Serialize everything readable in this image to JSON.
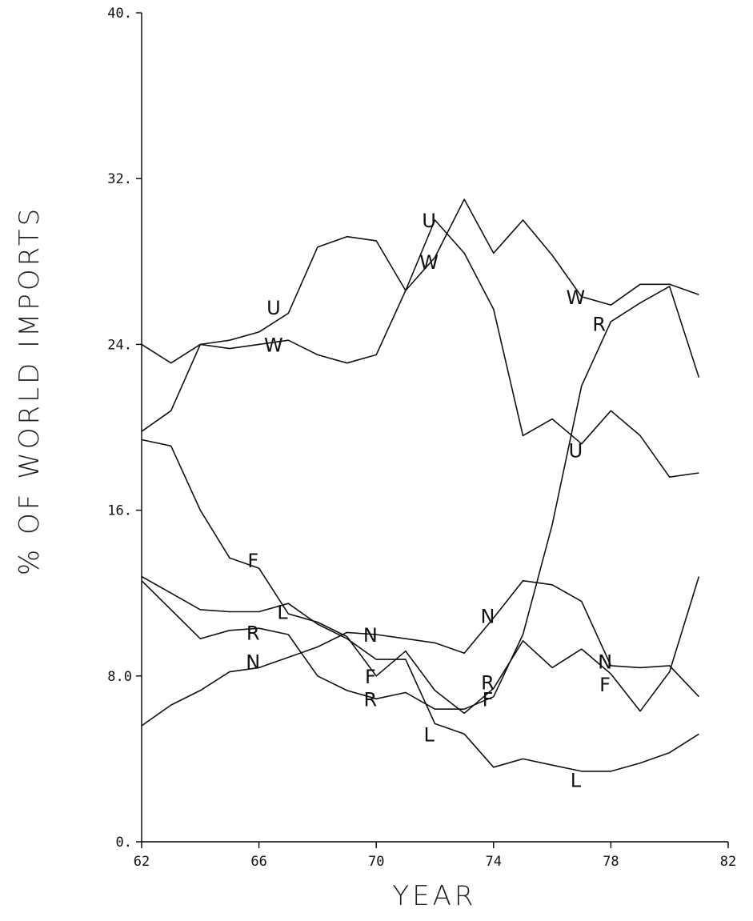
{
  "chart_data": {
    "type": "line",
    "xlabel": "YEAR",
    "ylabel": "% OF WORLD IMPORTS",
    "xlim": [
      62,
      82
    ],
    "ylim": [
      0,
      40
    ],
    "x_ticks": [
      62,
      66,
      70,
      74,
      78,
      82
    ],
    "x_tick_labels": [
      "62",
      "66",
      "70",
      "74",
      "78",
      "82"
    ],
    "y_ticks": [
      0,
      8,
      16,
      24,
      32,
      40
    ],
    "y_tick_labels": [
      "0.",
      "8.0",
      "16.",
      "24.",
      "32.",
      "40."
    ],
    "x": [
      62,
      63,
      64,
      65,
      66,
      67,
      68,
      69,
      70,
      71,
      72,
      73,
      74,
      75,
      76,
      77,
      78,
      79,
      80,
      81
    ],
    "series": [
      {
        "name": "U",
        "values": [
          19.8,
          20.8,
          24.0,
          24.2,
          24.6,
          25.5,
          28.7,
          29.2,
          29.0,
          26.6,
          30.0,
          28.4,
          25.7,
          19.6,
          20.4,
          19.2,
          20.8,
          19.6,
          17.6,
          17.8
        ],
        "markers": [
          {
            "x": 66.5,
            "y": 25.8
          },
          {
            "x": 71.8,
            "y": 30.0
          },
          {
            "x": 76.8,
            "y": 18.9
          }
        ]
      },
      {
        "name": "W",
        "values": [
          24.0,
          23.1,
          24.0,
          23.8,
          24.0,
          24.2,
          23.5,
          23.1,
          23.5,
          26.6,
          28.2,
          31.0,
          28.4,
          30.0,
          28.3,
          26.3,
          25.9,
          26.9,
          26.9,
          26.4
        ],
        "markers": [
          {
            "x": 66.5,
            "y": 24.0
          },
          {
            "x": 71.8,
            "y": 28.0
          },
          {
            "x": 76.8,
            "y": 26.3
          }
        ]
      },
      {
        "name": "R",
        "values": [
          12.6,
          11.2,
          9.8,
          10.2,
          10.3,
          10.0,
          8.0,
          7.3,
          6.9,
          7.2,
          6.4,
          6.4,
          7.0,
          10.0,
          15.3,
          22.0,
          25.1,
          26.0,
          26.8,
          22.4
        ],
        "markers": [
          {
            "x": 65.8,
            "y": 10.1
          },
          {
            "x": 69.8,
            "y": 6.9
          },
          {
            "x": 73.8,
            "y": 7.7
          },
          {
            "x": 77.6,
            "y": 25.0
          }
        ]
      },
      {
        "name": "F",
        "values": [
          19.4,
          19.1,
          16.0,
          13.7,
          13.2,
          11.0,
          10.6,
          9.9,
          8.0,
          9.2,
          7.3,
          6.2,
          7.4,
          9.7,
          8.4,
          9.3,
          8.1,
          6.3,
          8.2,
          12.8
        ],
        "markers": [
          {
            "x": 65.8,
            "y": 13.6
          },
          {
            "x": 69.8,
            "y": 8.0
          },
          {
            "x": 73.8,
            "y": 6.9
          },
          {
            "x": 77.8,
            "y": 7.6
          }
        ]
      },
      {
        "name": "L",
        "values": [
          12.8,
          12.0,
          11.2,
          11.1,
          11.1,
          11.5,
          10.5,
          9.8,
          8.8,
          8.8,
          5.7,
          5.2,
          3.6,
          4.0,
          3.7,
          3.4,
          3.4,
          3.8,
          4.3,
          5.2
        ],
        "markers": [
          {
            "x": 66.8,
            "y": 11.1
          },
          {
            "x": 71.8,
            "y": 5.2
          },
          {
            "x": 76.8,
            "y": 3.0
          }
        ]
      },
      {
        "name": "N",
        "values": [
          5.6,
          6.6,
          7.3,
          8.2,
          8.4,
          8.9,
          9.4,
          10.1,
          10.0,
          9.8,
          9.6,
          9.1,
          10.8,
          12.6,
          12.4,
          11.6,
          8.5,
          8.4,
          8.5,
          7.0
        ],
        "markers": [
          {
            "x": 65.8,
            "y": 8.7
          },
          {
            "x": 69.8,
            "y": 10.0
          },
          {
            "x": 73.8,
            "y": 10.9
          },
          {
            "x": 77.8,
            "y": 8.7
          }
        ]
      }
    ]
  }
}
